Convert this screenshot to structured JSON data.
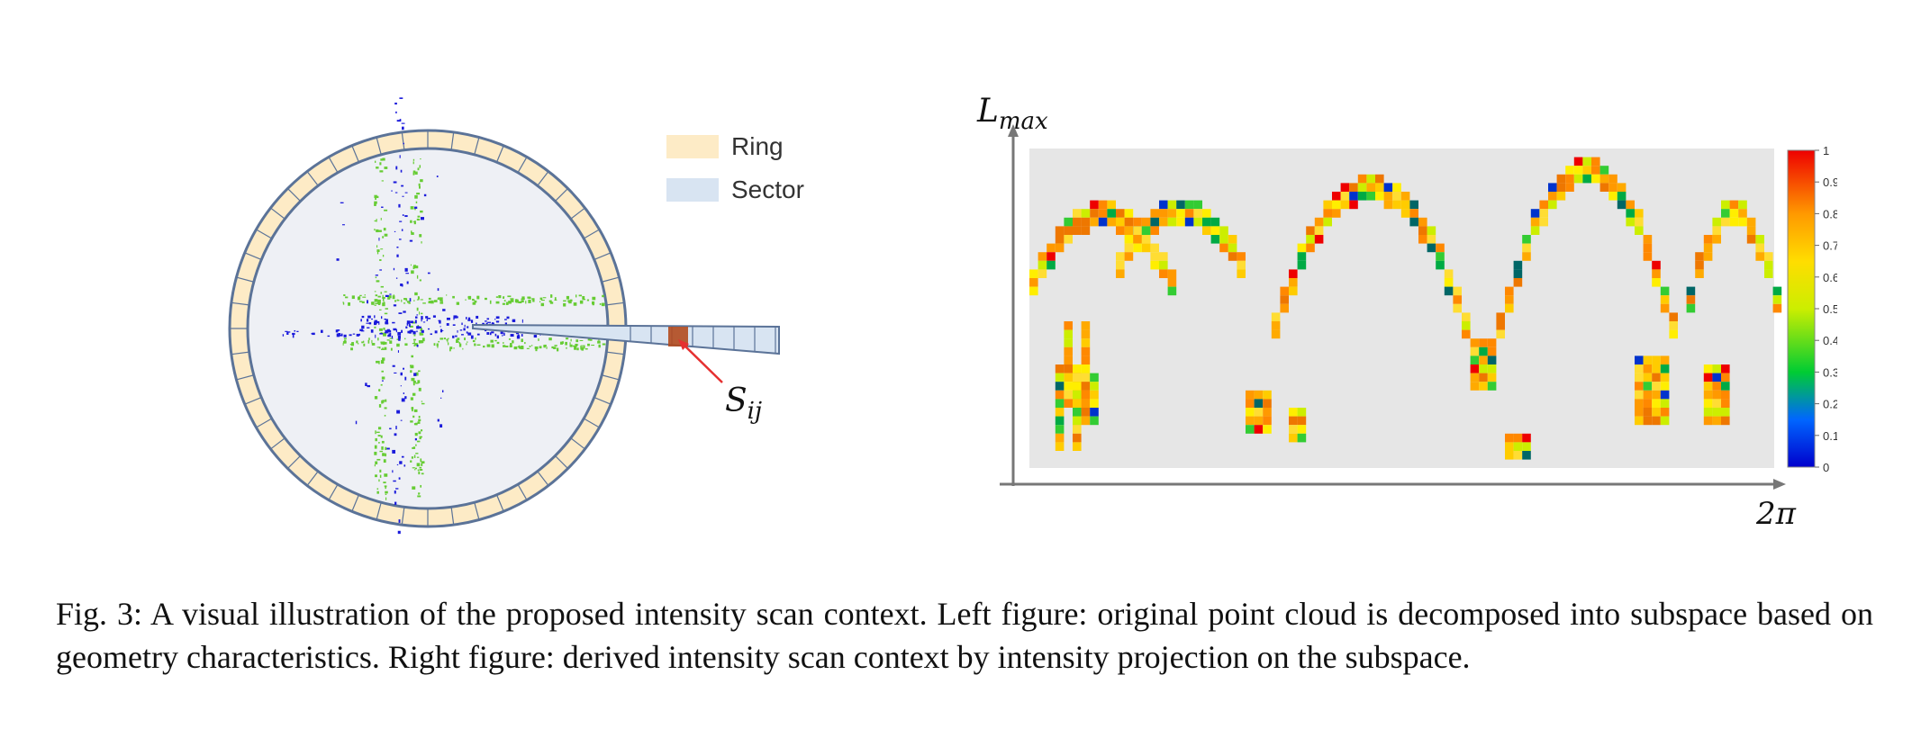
{
  "left_figure": {
    "legend": [
      {
        "label": "Ring",
        "color": "#fdebc6"
      },
      {
        "label": "Sector",
        "color": "#d8e4f2"
      }
    ],
    "cell_label": "S_ij",
    "colors": {
      "ring_outline": "#5b7398",
      "disk": "#eef0f5",
      "points_green": "#66cc33",
      "points_blue": "#1a1adb",
      "cell": "#b24a1e",
      "arrow": "#e53030"
    }
  },
  "right_figure": {
    "y_axis_label": "L_max",
    "x_axis_label": "2π",
    "colorbar": {
      "ticks": [
        "1",
        "0.9",
        "0.8",
        "0.7",
        "0.6",
        "0.5",
        "0.4",
        "0.3",
        "0.2",
        "0.1",
        "0"
      ],
      "colormap": "jet"
    },
    "background": "#e6e6e6"
  },
  "caption": "Fig. 3: A visual illustration of the proposed intensity scan context. Left figure: original point cloud is decomposed into subspace based on geometry characteristics. Right figure: derived intensity scan context by intensity projection on the subspace."
}
